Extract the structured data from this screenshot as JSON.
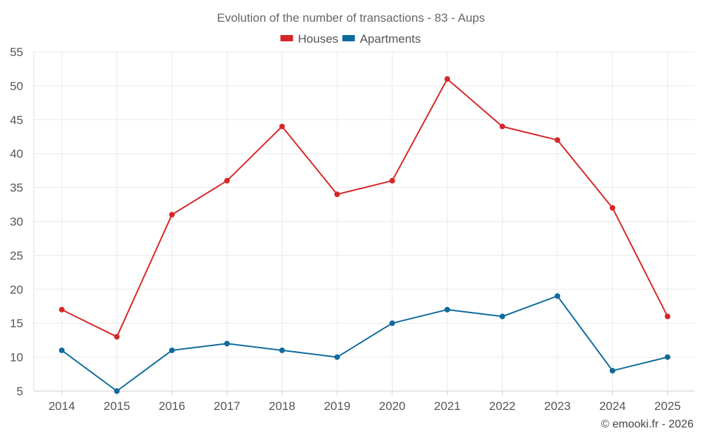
{
  "chart_data": {
    "type": "line",
    "title": "Evolution of the number of transactions - 83 - Aups",
    "xlabel": "",
    "ylabel": "",
    "categories": [
      "2014",
      "2015",
      "2016",
      "2017",
      "2018",
      "2019",
      "2020",
      "2021",
      "2022",
      "2023",
      "2024",
      "2025"
    ],
    "ylim": [
      5,
      55
    ],
    "yticks": [
      5,
      10,
      15,
      20,
      25,
      30,
      35,
      40,
      45,
      50,
      55
    ],
    "grid": true,
    "legend_position": "top-center",
    "series": [
      {
        "name": "Houses",
        "color": "#d62728",
        "values": [
          17,
          13,
          31,
          36,
          44,
          34,
          36,
          51,
          44,
          42,
          32,
          16
        ]
      },
      {
        "name": "Apartments",
        "color": "#0f6a9e",
        "values": [
          11,
          5,
          11,
          12,
          11,
          10,
          15,
          17,
          16,
          19,
          8,
          10
        ]
      }
    ],
    "credit": "© emooki.fr - 2026"
  }
}
